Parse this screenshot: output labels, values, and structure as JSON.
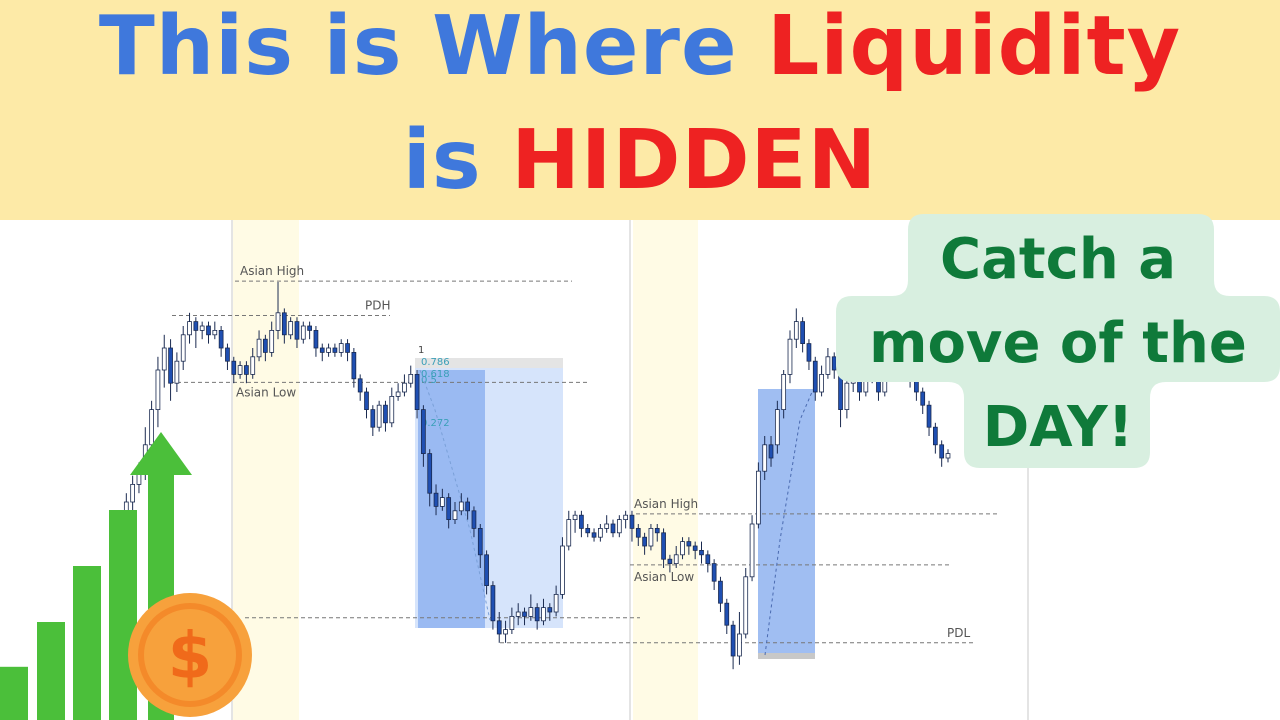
{
  "colors": {
    "banner_bg": "#fdeaa7",
    "title_blue": "#3f78dc",
    "title_red": "#ee2222",
    "callout_bg": "#d8efe0",
    "callout_text": "#0f7a3a",
    "bull": "#ffffff",
    "bear": "#1f4fb2",
    "wick": "#1a2a50",
    "trade_zone_light": "#d6e4fb",
    "trade_zone_dark": "#8fb3f0",
    "session_shade": "#fffbe5",
    "bar_green": "#4bbf3a",
    "coin_orange": "#f7a13c",
    "coin_inner": "#f48a2a"
  },
  "title": {
    "line1_blue": "This is Where",
    "line1_red": "Liquidity",
    "line2_blue": "is",
    "line2_red": "HIDDEN"
  },
  "callout": {
    "line1": "Catch a",
    "line2": "move of the",
    "line3": "DAY!"
  },
  "icons": {
    "coin": "dollar-coin-icon",
    "arrow": "up-arrow-icon",
    "coin_symbol": "$"
  },
  "growth_bars": [
    0.19,
    0.35,
    0.55,
    0.75
  ],
  "chart_data": {
    "type": "candlestick",
    "title": "",
    "xlabel": "",
    "ylabel": "",
    "ylim": [
      0,
      1
    ],
    "y_axis_orientation": "price increases upward (normalized 0-1)",
    "levels": [
      {
        "label": "Asian High",
        "value": 0.952
      },
      {
        "label": "PDH",
        "value": 0.874
      },
      {
        "label": "Asian Low",
        "value": 0.722
      },
      {
        "label": "Asian High",
        "value": 0.423
      },
      {
        "label": "Asian Low",
        "value": 0.307
      },
      {
        "label": "PDL",
        "value": 0.13
      }
    ],
    "unlabeled_levels": [
      0.187
    ],
    "fib_labels": [
      "1",
      "0.786",
      "0.618",
      "0.5",
      "0.272"
    ],
    "candles": [
      [
        0.38,
        0.4,
        0.42,
        0.36
      ],
      [
        0.4,
        0.45,
        0.47,
        0.39
      ],
      [
        0.45,
        0.49,
        0.51,
        0.43
      ],
      [
        0.49,
        0.52,
        0.54,
        0.47
      ],
      [
        0.52,
        0.58,
        0.62,
        0.5
      ],
      [
        0.58,
        0.66,
        0.68,
        0.55
      ],
      [
        0.66,
        0.75,
        0.78,
        0.62
      ],
      [
        0.75,
        0.8,
        0.83,
        0.71
      ],
      [
        0.8,
        0.72,
        0.82,
        0.68
      ],
      [
        0.72,
        0.77,
        0.79,
        0.7
      ],
      [
        0.77,
        0.83,
        0.85,
        0.75
      ],
      [
        0.83,
        0.86,
        0.88,
        0.81
      ],
      [
        0.86,
        0.84,
        0.87,
        0.8
      ],
      [
        0.84,
        0.85,
        0.86,
        0.82
      ],
      [
        0.85,
        0.83,
        0.86,
        0.81
      ],
      [
        0.83,
        0.84,
        0.86,
        0.82
      ],
      [
        0.84,
        0.8,
        0.85,
        0.78
      ],
      [
        0.8,
        0.77,
        0.81,
        0.75
      ],
      [
        0.77,
        0.74,
        0.78,
        0.72
      ],
      [
        0.74,
        0.76,
        0.77,
        0.73
      ],
      [
        0.76,
        0.74,
        0.77,
        0.72
      ],
      [
        0.74,
        0.78,
        0.8,
        0.73
      ],
      [
        0.78,
        0.82,
        0.84,
        0.77
      ],
      [
        0.82,
        0.79,
        0.83,
        0.77
      ],
      [
        0.79,
        0.84,
        0.86,
        0.78
      ],
      [
        0.84,
        0.88,
        0.95,
        0.82
      ],
      [
        0.88,
        0.83,
        0.89,
        0.81
      ],
      [
        0.83,
        0.86,
        0.87,
        0.82
      ],
      [
        0.86,
        0.82,
        0.87,
        0.8
      ],
      [
        0.82,
        0.85,
        0.86,
        0.81
      ],
      [
        0.85,
        0.84,
        0.86,
        0.82
      ],
      [
        0.84,
        0.8,
        0.85,
        0.78
      ],
      [
        0.8,
        0.79,
        0.81,
        0.77
      ],
      [
        0.79,
        0.8,
        0.81,
        0.78
      ],
      [
        0.8,
        0.79,
        0.81,
        0.78
      ],
      [
        0.79,
        0.81,
        0.82,
        0.78
      ],
      [
        0.81,
        0.79,
        0.82,
        0.77
      ],
      [
        0.79,
        0.73,
        0.8,
        0.71
      ],
      [
        0.73,
        0.7,
        0.74,
        0.68
      ],
      [
        0.7,
        0.66,
        0.71,
        0.64
      ],
      [
        0.66,
        0.62,
        0.67,
        0.6
      ],
      [
        0.62,
        0.67,
        0.68,
        0.61
      ],
      [
        0.67,
        0.63,
        0.68,
        0.61
      ],
      [
        0.63,
        0.69,
        0.71,
        0.62
      ],
      [
        0.69,
        0.7,
        0.72,
        0.68
      ],
      [
        0.7,
        0.72,
        0.74,
        0.69
      ],
      [
        0.72,
        0.74,
        0.76,
        0.71
      ],
      [
        0.74,
        0.66,
        0.75,
        0.64
      ],
      [
        0.66,
        0.56,
        0.67,
        0.53
      ],
      [
        0.56,
        0.47,
        0.57,
        0.44
      ],
      [
        0.47,
        0.44,
        0.49,
        0.42
      ],
      [
        0.44,
        0.46,
        0.48,
        0.43
      ],
      [
        0.46,
        0.41,
        0.47,
        0.39
      ],
      [
        0.41,
        0.43,
        0.45,
        0.4
      ],
      [
        0.43,
        0.45,
        0.47,
        0.42
      ],
      [
        0.45,
        0.43,
        0.46,
        0.41
      ],
      [
        0.43,
        0.39,
        0.44,
        0.37
      ],
      [
        0.39,
        0.33,
        0.4,
        0.3
      ],
      [
        0.33,
        0.26,
        0.34,
        0.24
      ],
      [
        0.26,
        0.18,
        0.27,
        0.16
      ],
      [
        0.18,
        0.15,
        0.2,
        0.13
      ],
      [
        0.15,
        0.16,
        0.18,
        0.13
      ],
      [
        0.16,
        0.19,
        0.21,
        0.15
      ],
      [
        0.19,
        0.2,
        0.22,
        0.17
      ],
      [
        0.2,
        0.19,
        0.21,
        0.17
      ],
      [
        0.19,
        0.21,
        0.24,
        0.18
      ],
      [
        0.21,
        0.18,
        0.22,
        0.16
      ],
      [
        0.18,
        0.21,
        0.23,
        0.17
      ],
      [
        0.21,
        0.2,
        0.22,
        0.18
      ],
      [
        0.2,
        0.24,
        0.26,
        0.19
      ],
      [
        0.24,
        0.35,
        0.37,
        0.23
      ],
      [
        0.35,
        0.41,
        0.43,
        0.34
      ],
      [
        0.41,
        0.42,
        0.43,
        0.38
      ],
      [
        0.42,
        0.39,
        0.43,
        0.37
      ],
      [
        0.39,
        0.38,
        0.4,
        0.37
      ],
      [
        0.38,
        0.37,
        0.39,
        0.36
      ],
      [
        0.37,
        0.39,
        0.4,
        0.36
      ],
      [
        0.39,
        0.4,
        0.42,
        0.38
      ],
      [
        0.4,
        0.38,
        0.41,
        0.37
      ],
      [
        0.38,
        0.41,
        0.42,
        0.37
      ],
      [
        0.41,
        0.42,
        0.43,
        0.39
      ],
      [
        0.42,
        0.39,
        0.43,
        0.36
      ],
      [
        0.39,
        0.37,
        0.4,
        0.35
      ],
      [
        0.37,
        0.35,
        0.38,
        0.33
      ],
      [
        0.35,
        0.39,
        0.4,
        0.34
      ],
      [
        0.39,
        0.38,
        0.4,
        0.36
      ],
      [
        0.38,
        0.32,
        0.39,
        0.3
      ],
      [
        0.32,
        0.31,
        0.33,
        0.29
      ],
      [
        0.31,
        0.33,
        0.35,
        0.3
      ],
      [
        0.33,
        0.36,
        0.37,
        0.32
      ],
      [
        0.36,
        0.35,
        0.37,
        0.33
      ],
      [
        0.35,
        0.34,
        0.36,
        0.32
      ],
      [
        0.34,
        0.33,
        0.36,
        0.31
      ],
      [
        0.33,
        0.31,
        0.34,
        0.29
      ],
      [
        0.31,
        0.27,
        0.32,
        0.25
      ],
      [
        0.27,
        0.22,
        0.28,
        0.2
      ],
      [
        0.22,
        0.17,
        0.23,
        0.15
      ],
      [
        0.17,
        0.1,
        0.18,
        0.07
      ],
      [
        0.1,
        0.15,
        0.2,
        0.08
      ],
      [
        0.15,
        0.28,
        0.3,
        0.14
      ],
      [
        0.28,
        0.4,
        0.42,
        0.27
      ],
      [
        0.4,
        0.52,
        0.54,
        0.39
      ],
      [
        0.52,
        0.58,
        0.6,
        0.5
      ],
      [
        0.58,
        0.55,
        0.6,
        0.53
      ],
      [
        0.58,
        0.66,
        0.68,
        0.56
      ],
      [
        0.66,
        0.74,
        0.75,
        0.64
      ],
      [
        0.74,
        0.82,
        0.84,
        0.72
      ],
      [
        0.82,
        0.86,
        0.89,
        0.8
      ],
      [
        0.86,
        0.81,
        0.87,
        0.79
      ],
      [
        0.81,
        0.77,
        0.82,
        0.75
      ],
      [
        0.77,
        0.7,
        0.78,
        0.68
      ],
      [
        0.7,
        0.74,
        0.76,
        0.69
      ],
      [
        0.74,
        0.78,
        0.8,
        0.73
      ],
      [
        0.78,
        0.75,
        0.79,
        0.73
      ],
      [
        0.75,
        0.66,
        0.76,
        0.62
      ],
      [
        0.66,
        0.72,
        0.84,
        0.64
      ],
      [
        0.72,
        0.76,
        0.78,
        0.7
      ],
      [
        0.76,
        0.7,
        0.77,
        0.68
      ],
      [
        0.7,
        0.78,
        0.8,
        0.69
      ],
      [
        0.78,
        0.74,
        0.79,
        0.72
      ],
      [
        0.74,
        0.7,
        0.75,
        0.68
      ],
      [
        0.7,
        0.76,
        0.78,
        0.69
      ],
      [
        0.76,
        0.85,
        0.87,
        0.75
      ],
      [
        0.85,
        0.77,
        0.86,
        0.75
      ],
      [
        0.77,
        0.75,
        0.78,
        0.73
      ],
      [
        0.75,
        0.73,
        0.76,
        0.71
      ],
      [
        0.73,
        0.7,
        0.74,
        0.68
      ],
      [
        0.7,
        0.67,
        0.71,
        0.65
      ],
      [
        0.67,
        0.62,
        0.68,
        0.6
      ],
      [
        0.62,
        0.58,
        0.63,
        0.56
      ],
      [
        0.58,
        0.55,
        0.59,
        0.53
      ],
      [
        0.55,
        0.56,
        0.57,
        0.54
      ]
    ]
  }
}
